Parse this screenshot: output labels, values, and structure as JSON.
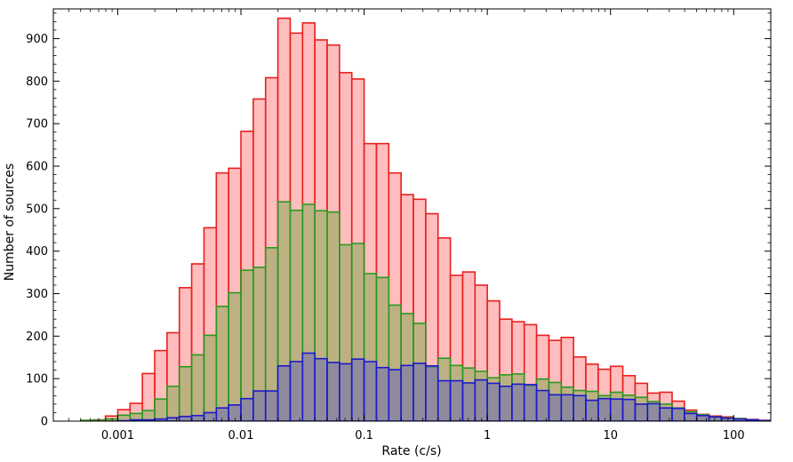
{
  "chart_data": {
    "type": "bar",
    "title": "",
    "xlabel": "Rate (c/s)",
    "ylabel": "Number of sources",
    "x_scale": "log",
    "xlim": [
      0.0003,
      200
    ],
    "ylim": [
      0,
      970
    ],
    "bin_width_log10": 0.1,
    "x_ticks": [
      {
        "value": 0.001,
        "label": "0.001"
      },
      {
        "value": 0.01,
        "label": "0.01"
      },
      {
        "value": 0.1,
        "label": "0.1"
      },
      {
        "value": 1,
        "label": "1"
      },
      {
        "value": 10,
        "label": "10"
      },
      {
        "value": 100,
        "label": "100"
      }
    ],
    "y_ticks": [
      0,
      100,
      200,
      300,
      400,
      500,
      600,
      700,
      800,
      900
    ],
    "grid": false,
    "legend": "none",
    "bin_left_edges": [
      0.000501,
      0.000631,
      0.000794,
      0.001,
      0.001259,
      0.001585,
      0.001995,
      0.002512,
      0.003162,
      0.003981,
      0.005012,
      0.00631,
      0.007943,
      0.01,
      0.012589,
      0.015849,
      0.019953,
      0.025119,
      0.031623,
      0.039811,
      0.050119,
      0.063096,
      0.079433,
      0.1,
      0.125893,
      0.158489,
      0.199526,
      0.251189,
      0.316228,
      0.398107,
      0.501187,
      0.630957,
      0.794328,
      1,
      1.258925,
      1.584893,
      1.995262,
      2.511886,
      3.162278,
      3.981072,
      5.011872,
      6.309573,
      7.943282,
      10,
      12.589254,
      15.848932,
      19.952623,
      25.118864,
      31.622777,
      39.810717,
      50.118723,
      63.095734,
      79.432823,
      100,
      125.892541,
      158.489319
    ],
    "series": [
      {
        "color": "#ff9999",
        "edge_color": "#e82020",
        "values": [
          0,
          3,
          12,
          27,
          42,
          112,
          166,
          208,
          314,
          370,
          455,
          584,
          595,
          682,
          758,
          808,
          948,
          913,
          937,
          897,
          885,
          820,
          805,
          653,
          653,
          584,
          533,
          522,
          488,
          431,
          343,
          351,
          320,
          283,
          240,
          234,
          227,
          202,
          190,
          197,
          151,
          134,
          122,
          129,
          107,
          89,
          66,
          68,
          47,
          26,
          16,
          12,
          10,
          6,
          4,
          2
        ]
      },
      {
        "color": "#99aa66",
        "edge_color": "#2a9a20",
        "values": [
          2,
          2,
          5,
          14,
          18,
          25,
          52,
          82,
          128,
          156,
          202,
          270,
          302,
          355,
          362,
          408,
          516,
          496,
          510,
          495,
          492,
          415,
          418,
          347,
          338,
          273,
          253,
          230,
          127,
          148,
          131,
          125,
          117,
          102,
          109,
          111,
          83,
          99,
          91,
          80,
          72,
          70,
          60,
          68,
          61,
          56,
          46,
          40,
          31,
          22,
          15,
          9,
          8,
          6,
          3,
          1
        ]
      },
      {
        "color": "#7777aa",
        "edge_color": "#1a1acc",
        "values": [
          0,
          0,
          0,
          1,
          3,
          3,
          5,
          8,
          11,
          13,
          20,
          31,
          38,
          53,
          71,
          71,
          130,
          140,
          160,
          147,
          138,
          135,
          146,
          140,
          126,
          121,
          131,
          136,
          130,
          95,
          95,
          90,
          97,
          89,
          82,
          87,
          86,
          72,
          62,
          62,
          60,
          49,
          53,
          52,
          51,
          40,
          41,
          31,
          30,
          18,
          13,
          10,
          7,
          5,
          3,
          1
        ]
      }
    ]
  }
}
